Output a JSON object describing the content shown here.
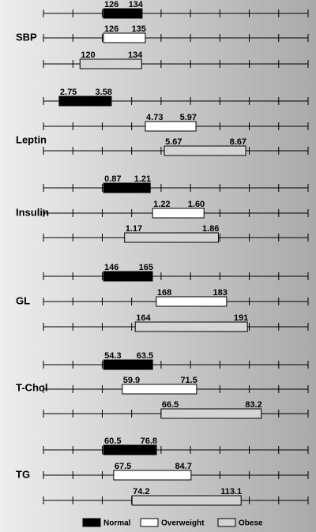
{
  "chart_data": {
    "type": "range-bar",
    "series": [
      {
        "name": "Normal",
        "color": "#000000"
      },
      {
        "name": "Overweight",
        "color": "#ffffff"
      },
      {
        "name": "Obese",
        "color": "#d4d4d4"
      }
    ],
    "panels": [
      {
        "label": "SBP",
        "rows": [
          {
            "values": [
              126,
              134
            ],
            "xlim": [
              113.6,
              168.3
            ]
          },
          {
            "values": [
              126,
              135
            ],
            "xlim": [
              113.1,
              170.0
            ]
          },
          {
            "values": [
              120,
              134
            ],
            "xlim": [
              111.7,
              171.8
            ]
          }
        ]
      },
      {
        "label": "Leptin",
        "rows": [
          {
            "values": [
              2.75,
              3.58
            ],
            "xlim": [
              2.5,
              6.71
            ]
          },
          {
            "values": [
              4.73,
              5.97
            ],
            "xlim": [
              2.23,
              8.72
            ]
          },
          {
            "values": [
              5.67,
              8.67
            ],
            "xlim": [
              1.21,
              10.97
            ]
          }
        ]
      },
      {
        "label": "Insulin",
        "rows": [
          {
            "values": [
              0.87,
              1.21
            ],
            "xlim": [
              0.432,
              2.36
            ]
          },
          {
            "values": [
              1.22,
              1.6
            ],
            "value_labels": [
              "1.22",
              "1.60"
            ],
            "xlim": [
              0.413,
              2.37
            ]
          },
          {
            "values": [
              1.17,
              1.86
            ],
            "xlim": [
              0.573,
              2.52
            ]
          }
        ]
      },
      {
        "label": "GL",
        "rows": [
          {
            "values": [
              146,
              165
            ],
            "xlim": [
              122.7,
              225.4
            ]
          },
          {
            "values": [
              168,
              183
            ],
            "xlim": [
              143.9,
              200.4
            ]
          },
          {
            "values": [
              164,
              191
            ],
            "xlim": [
              141.9,
              205.6
            ]
          }
        ]
      },
      {
        "label": "T-Chol",
        "rows": [
          {
            "values": [
              54.3,
              63.5
            ],
            "xlim": [
              43.0,
              92.7
            ]
          },
          {
            "values": [
              59.9,
              71.5
            ],
            "xlim": [
              47.6,
              88.9
            ]
          },
          {
            "values": [
              66.5,
              83.2
            ],
            "xlim": [
              46.9,
              91.0
            ]
          }
        ]
      },
      {
        "label": "TG",
        "rows": [
          {
            "values": [
              60.5,
              76.8
            ],
            "xlim": [
              42.0,
              123.5
            ]
          },
          {
            "values": [
              67.5,
              84.7
            ],
            "xlim": [
              51.9,
              110.7
            ]
          },
          {
            "values": [
              74.2,
              113.1
            ],
            "xlim": [
              42.6,
              137.0
            ]
          }
        ]
      }
    ]
  }
}
